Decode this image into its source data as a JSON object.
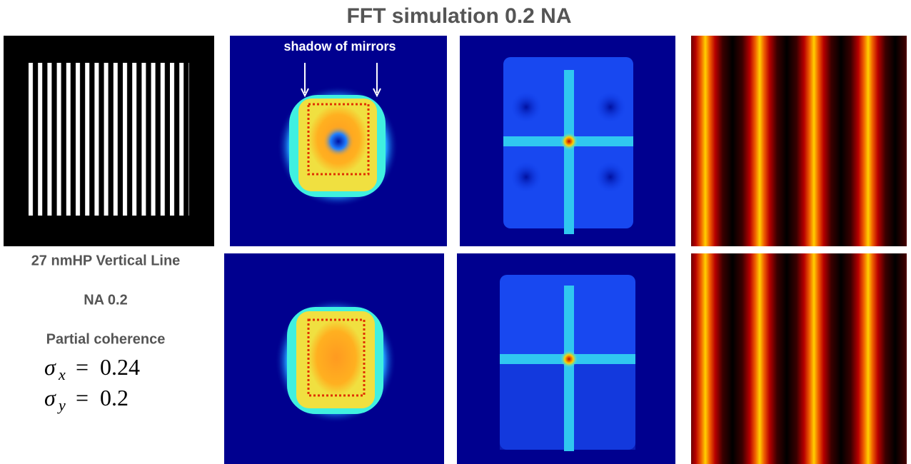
{
  "header": {
    "title": "FFT simulation  0.2 NA"
  },
  "annotation": {
    "text": "shadow of mirrors"
  },
  "caption": {
    "line1": "27 nmHP Vertical Line",
    "line2": "NA 0.2",
    "line3": "Partial coherence"
  },
  "sigma_x": {
    "symbol": "σ",
    "subscript": "x",
    "relation": "=",
    "value": 0.24
  },
  "sigma_y": {
    "symbol": "σ",
    "subscript": "y",
    "relation": "=",
    "value": 0.2
  }
}
